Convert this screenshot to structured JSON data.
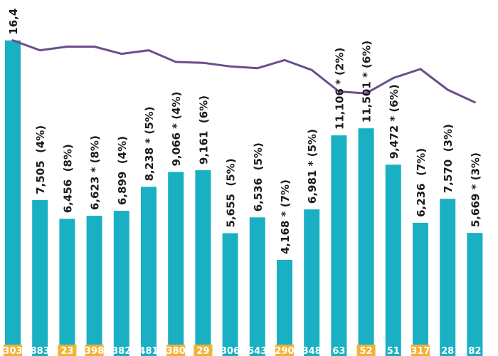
{
  "chart_data": {
    "type": "bar",
    "title": "",
    "xlabel": "",
    "ylabel": "",
    "ylim": [
      0,
      17000
    ],
    "grid": false,
    "legend": "none",
    "colors": {
      "bar": "#1ab0c3",
      "line": "#6b4e8c",
      "base_band": "#1ab0c3",
      "base_highlight": "#f2b233",
      "label_text": "#1a1a1a",
      "base_text": "#ffffff"
    },
    "values": [
      16400,
      7505,
      6456,
      6623,
      6899,
      8238,
      9066,
      9161,
      5655,
      6536,
      4168,
      6981,
      11106,
      11501,
      9472,
      6236,
      7570,
      5669
    ],
    "labels": [
      "16,4",
      "7,505  (4%)",
      "6,456  (8%)",
      "6,623 * (8%)",
      "6,899  (4%)",
      "8,238 * (5%)",
      "9,066 * (4%)",
      "9,161  (6%)",
      "5,655  (5%)",
      "6,536  (5%)",
      "4,168 * (7%)",
      "6,981 * (5%)",
      "11,106 * (2%)",
      "11,501 * (6%)",
      "9,472 * (6%)",
      "6,236  (7%)",
      "7,570  (3%)",
      "5,669 * (3%)"
    ],
    "base_labels": [
      "303",
      "883",
      "23",
      "398",
      "382",
      "481",
      "380",
      "29",
      "306",
      "543",
      "290",
      "348",
      "63",
      "52",
      "51",
      "317",
      "28",
      "82"
    ],
    "base_highlighted": [
      true,
      false,
      true,
      true,
      false,
      false,
      true,
      true,
      false,
      false,
      true,
      false,
      false,
      true,
      false,
      true,
      false,
      false
    ],
    "line_series": {
      "values": [
        16400,
        15850,
        16050,
        16050,
        15650,
        15850,
        15200,
        15150,
        14950,
        14850,
        15300,
        14750,
        13550,
        13450,
        14300,
        14800,
        13650,
        12950
      ]
    }
  }
}
